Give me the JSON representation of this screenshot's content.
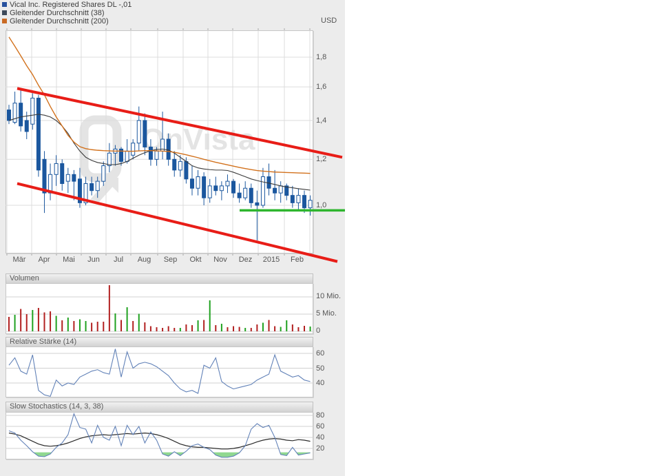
{
  "currency_label": "USD",
  "watermark": "OnVista",
  "legend": {
    "items": [
      {
        "label": "Vical Inc. Registered Shares DL -,01",
        "color": "#27519e"
      },
      {
        "label": "Gleitender Durchschnitt (38)",
        "color": "#3e4a5a"
      },
      {
        "label": "Gleitender Durchschnitt (200)",
        "color": "#c96a24"
      }
    ]
  },
  "colors": {
    "candle": "#1b579e",
    "ma38": "#3a3a3a",
    "ma200": "#d2711c",
    "trend_line": "#e81d17",
    "support_line": "#2eb52e",
    "volume_up": "#1fa11f",
    "volume_down": "#b22020",
    "rsi_line": "#6282b8",
    "stoch_line": "#6282b8",
    "stoch_signal": "#2a2a2a",
    "oversold_fill": "#90d890",
    "overbought_fill": "#e57f7f",
    "grid": "#dcdcdc",
    "tick": "#aaaaaa",
    "watermark_fill": "#e4e4e4",
    "widget_bg": "#ececec"
  },
  "chart_data": [
    {
      "type": "candlestick",
      "title": "Vical Inc. Registered Shares DL -,01",
      "unit": "USD",
      "log_scale": true,
      "ylim": [
        0.83,
        2.0
      ],
      "x_tick_labels": [
        "Mär",
        "Apr",
        "Mai",
        "Jun",
        "Jul",
        "Aug",
        "Sep",
        "Okt",
        "Nov",
        "Dez",
        "2015",
        "Feb"
      ],
      "y_tick_labels": [
        "1,8",
        "1,6",
        "1,4",
        "1,2",
        "1,0"
      ],
      "y_tick_values": [
        1.8,
        1.6,
        1.4,
        1.2,
        1.0
      ],
      "ohlc": [
        [
          1.46,
          1.49,
          1.38,
          1.4
        ],
        [
          1.39,
          1.57,
          1.38,
          1.5
        ],
        [
          1.5,
          1.58,
          1.34,
          1.37
        ],
        [
          1.4,
          1.45,
          1.3,
          1.34
        ],
        [
          1.38,
          1.56,
          1.35,
          1.53
        ],
        [
          1.53,
          1.55,
          1.12,
          1.15
        ],
        [
          1.2,
          1.24,
          0.97,
          1.05
        ],
        [
          1.05,
          1.18,
          1.02,
          1.13
        ],
        [
          1.13,
          1.22,
          1.08,
          1.18
        ],
        [
          1.18,
          1.2,
          1.06,
          1.09
        ],
        [
          1.1,
          1.16,
          1.05,
          1.13
        ],
        [
          1.13,
          1.15,
          1.02,
          1.1
        ],
        [
          1.11,
          1.16,
          0.99,
          1.01
        ],
        [
          1.01,
          1.12,
          1.0,
          1.09
        ],
        [
          1.09,
          1.12,
          1.04,
          1.06
        ],
        [
          1.06,
          1.12,
          1.03,
          1.1
        ],
        [
          1.1,
          1.19,
          1.08,
          1.17
        ],
        [
          1.17,
          1.28,
          1.14,
          1.23
        ],
        [
          1.23,
          1.27,
          1.17,
          1.25
        ],
        [
          1.25,
          1.26,
          1.17,
          1.19
        ],
        [
          1.19,
          1.3,
          1.18,
          1.24
        ],
        [
          1.22,
          1.3,
          1.2,
          1.28
        ],
        [
          1.28,
          1.48,
          1.24,
          1.4
        ],
        [
          1.4,
          1.44,
          1.22,
          1.26
        ],
        [
          1.26,
          1.3,
          1.17,
          1.2
        ],
        [
          1.2,
          1.26,
          1.17,
          1.24
        ],
        [
          1.24,
          1.45,
          1.2,
          1.3
        ],
        [
          1.3,
          1.33,
          1.17,
          1.2
        ],
        [
          1.2,
          1.24,
          1.12,
          1.15
        ],
        [
          1.15,
          1.22,
          1.12,
          1.19
        ],
        [
          1.19,
          1.21,
          1.09,
          1.11
        ],
        [
          1.11,
          1.17,
          1.04,
          1.07
        ],
        [
          1.07,
          1.15,
          1.04,
          1.12
        ],
        [
          1.12,
          1.14,
          1.0,
          1.03
        ],
        [
          1.03,
          1.11,
          1.01,
          1.08
        ],
        [
          1.08,
          1.12,
          1.04,
          1.06
        ],
        [
          1.06,
          1.1,
          1.02,
          1.08
        ],
        [
          1.08,
          1.13,
          1.05,
          1.1
        ],
        [
          1.1,
          1.11,
          1.03,
          1.05
        ],
        [
          1.05,
          1.09,
          1.01,
          1.03
        ],
        [
          1.03,
          1.1,
          1.02,
          1.07
        ],
        [
          1.07,
          1.09,
          0.99,
          1.01
        ],
        [
          1.01,
          1.06,
          0.87,
          1.0
        ],
        [
          1.0,
          1.16,
          0.99,
          1.12
        ],
        [
          1.12,
          1.18,
          1.04,
          1.07
        ],
        [
          1.07,
          1.15,
          1.02,
          1.05
        ],
        [
          1.05,
          1.1,
          1.01,
          1.08
        ],
        [
          1.08,
          1.09,
          1.02,
          1.04
        ],
        [
          1.04,
          1.08,
          0.99,
          1.01
        ],
        [
          1.01,
          1.07,
          0.98,
          1.04
        ],
        [
          1.04,
          1.06,
          0.97,
          0.99
        ],
        [
          0.99,
          1.04,
          0.96,
          1.02
        ]
      ],
      "series": [
        {
          "name": "Gleitender Durchschnitt (38)",
          "values": [
            1.4,
            1.41,
            1.42,
            1.425,
            1.43,
            1.435,
            1.43,
            1.42,
            1.4,
            1.37,
            1.33,
            1.28,
            1.24,
            1.21,
            1.195,
            1.185,
            1.18,
            1.175,
            1.175,
            1.18,
            1.19,
            1.205,
            1.22,
            1.232,
            1.242,
            1.248,
            1.25,
            1.245,
            1.23,
            1.21,
            1.19,
            1.17,
            1.16,
            1.155,
            1.152,
            1.15,
            1.15,
            1.148,
            1.14,
            1.13,
            1.12,
            1.11,
            1.103,
            1.097,
            1.092,
            1.086,
            1.08,
            1.075,
            1.072,
            1.068,
            1.065,
            1.062
          ]
        },
        {
          "name": "Gleitender Durchschnitt (200)",
          "values": [
            1.95,
            1.88,
            1.81,
            1.74,
            1.68,
            1.61,
            1.55,
            1.48,
            1.42,
            1.37,
            1.32,
            1.285,
            1.262,
            1.252,
            1.247,
            1.244,
            1.242,
            1.241,
            1.24,
            1.24,
            1.239,
            1.239,
            1.241,
            1.242,
            1.242,
            1.241,
            1.24,
            1.238,
            1.234,
            1.228,
            1.222,
            1.215,
            1.208,
            1.2,
            1.193,
            1.186,
            1.18,
            1.174,
            1.168,
            1.162,
            1.157,
            1.152,
            1.148,
            1.145,
            1.143,
            1.141,
            1.14,
            1.139,
            1.138,
            1.137,
            1.136,
            1.135
          ]
        }
      ],
      "annotations": {
        "trend_channel_upper": {
          "start_price": 1.59,
          "end_price": 1.21
        },
        "trend_channel_lower": {
          "start_price": 1.09,
          "end_price": 0.8
        },
        "support_line_price": 0.98
      }
    },
    {
      "type": "bar",
      "title": "Volumen",
      "unit": "Mio.",
      "ylim": [
        0,
        14
      ],
      "y_tick_labels": [
        "10 Mio.",
        "5 Mio.",
        "0"
      ],
      "y_tick_values": [
        10,
        5,
        0
      ],
      "values": [
        4.2,
        4.8,
        6.5,
        5.0,
        6.2,
        6.8,
        5.5,
        5.8,
        4.5,
        3.2,
        4.0,
        3.0,
        3.5,
        3.0,
        2.5,
        2.8,
        2.8,
        13.4,
        5.2,
        3.3,
        7.0,
        3.0,
        5.1,
        2.6,
        1.5,
        1.2,
        1.0,
        1.5,
        1.0,
        1.0,
        2.0,
        1.8,
        3.2,
        3.3,
        9.0,
        1.8,
        2.2,
        1.2,
        1.5,
        1.3,
        1.0,
        1.0,
        2.0,
        2.5,
        3.3,
        1.5,
        1.3,
        3.2,
        2.0,
        1.2,
        1.6,
        1.4
      ],
      "directions": [
        "d",
        "u",
        "d",
        "d",
        "u",
        "d",
        "d",
        "d",
        "u",
        "d",
        "u",
        "d",
        "u",
        "u",
        "d",
        "d",
        "d",
        "d",
        "u",
        "d",
        "u",
        "d",
        "u",
        "d",
        "d",
        "d",
        "d",
        "d",
        "d",
        "u",
        "d",
        "d",
        "u",
        "d",
        "u",
        "d",
        "u",
        "d",
        "d",
        "d",
        "u",
        "d",
        "d",
        "u",
        "d",
        "d",
        "u",
        "u",
        "d",
        "d",
        "d",
        "u"
      ]
    },
    {
      "type": "line",
      "title": "Relative Stärke (14)",
      "ylim": [
        28,
        66
      ],
      "y_tick_labels": [
        "60",
        "50",
        "40"
      ],
      "y_tick_values": [
        60,
        50,
        40
      ],
      "values": [
        52,
        57,
        48,
        46,
        59,
        35,
        32,
        31,
        42,
        38,
        40,
        39,
        44,
        46,
        48,
        49,
        47,
        46,
        63,
        44,
        61,
        50,
        53,
        54,
        53,
        51,
        48,
        45,
        40,
        36,
        34,
        35,
        33,
        52,
        50,
        57,
        41,
        38,
        36,
        37,
        38,
        39,
        42,
        44,
        46,
        59,
        48,
        46,
        44,
        45,
        42,
        41
      ]
    },
    {
      "type": "line",
      "title": "Slow Stochastics (14, 3, 38)",
      "ylim": [
        0,
        88
      ],
      "y_tick_labels": [
        "80",
        "60",
        "40",
        "20"
      ],
      "y_tick_values": [
        80,
        60,
        40,
        20
      ],
      "oversold_threshold": 13,
      "overbought_threshold": 80,
      "series": [
        {
          "name": "stochastic",
          "values": [
            52,
            48,
            35,
            25,
            14,
            6,
            5,
            10,
            22,
            30,
            45,
            83,
            58,
            55,
            30,
            62,
            40,
            35,
            60,
            25,
            62,
            45,
            60,
            30,
            50,
            35,
            10,
            6,
            14,
            7,
            15,
            25,
            28,
            22,
            18,
            8,
            4,
            4,
            6,
            12,
            25,
            55,
            65,
            58,
            62,
            40,
            9,
            7,
            22,
            8,
            10,
            12
          ]
        },
        {
          "name": "signal",
          "values": [
            48,
            46,
            43,
            38,
            33,
            28,
            25,
            24,
            25,
            27,
            30,
            34,
            38,
            41,
            43,
            44,
            45,
            44,
            45,
            46,
            47,
            46,
            47,
            48,
            47,
            45,
            42,
            38,
            33,
            28,
            25,
            23,
            22,
            22,
            21,
            20,
            19,
            19,
            20,
            22,
            25,
            28,
            32,
            35,
            37,
            38,
            37,
            35,
            34,
            36,
            35,
            33
          ]
        }
      ]
    }
  ]
}
